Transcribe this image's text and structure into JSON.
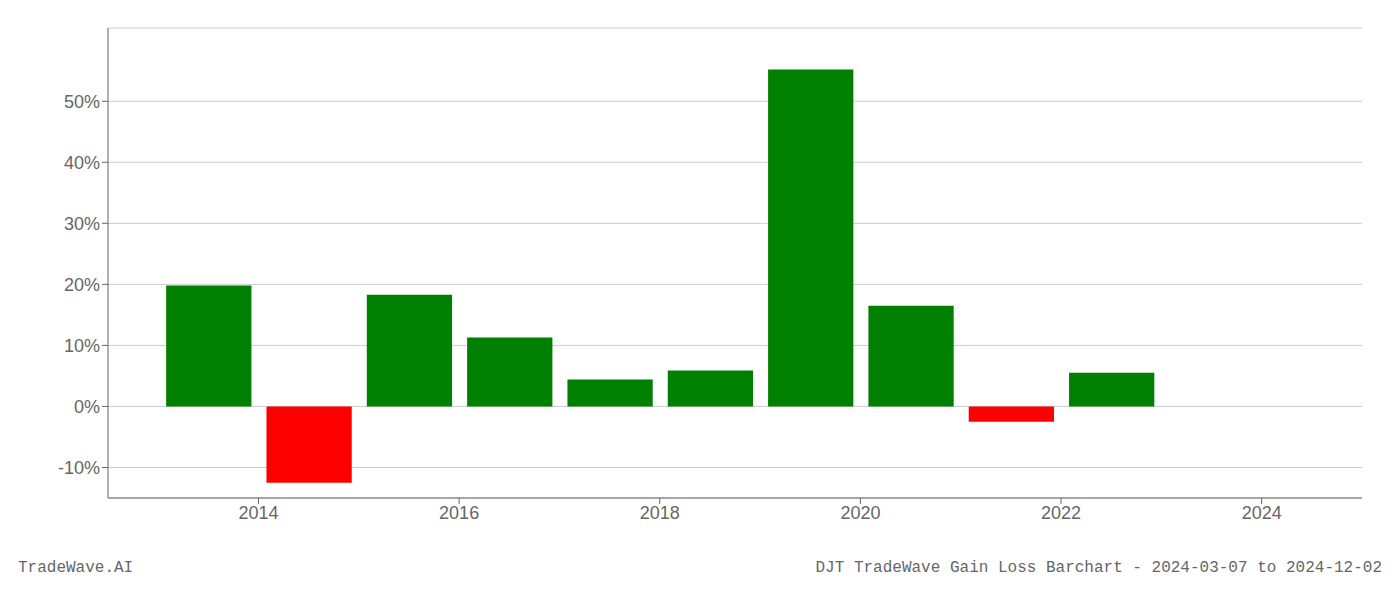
{
  "chart_data": {
    "type": "bar",
    "x": [
      2013.5,
      2014.5,
      2015.5,
      2016.5,
      2017.5,
      2018.5,
      2019.5,
      2020.5,
      2021.5,
      2022.5
    ],
    "values": [
      19.8,
      -12.5,
      18.3,
      11.3,
      4.4,
      5.9,
      55.2,
      16.5,
      -2.5,
      5.5
    ],
    "colors": [
      "#008000",
      "#ff0000",
      "#008000",
      "#008000",
      "#008000",
      "#008000",
      "#008000",
      "#008000",
      "#ff0000",
      "#008000"
    ],
    "xlim": [
      2012.5,
      2025.0
    ],
    "xticks": [
      2014,
      2016,
      2018,
      2020,
      2022,
      2024
    ],
    "ylim": [
      -15,
      62
    ],
    "yticks": [
      {
        "value": -10,
        "label": "-10%"
      },
      {
        "value": 0,
        "label": "0%"
      },
      {
        "value": 10,
        "label": "10%"
      },
      {
        "value": 20,
        "label": "20%"
      },
      {
        "value": 30,
        "label": "30%"
      },
      {
        "value": 40,
        "label": "40%"
      },
      {
        "value": 50,
        "label": "50%"
      }
    ],
    "grid": true,
    "annotations": [
      "TradeWave.AI",
      "DJT TradeWave Gain Loss Barchart - 2024-03-07 to 2024-12-02"
    ]
  }
}
